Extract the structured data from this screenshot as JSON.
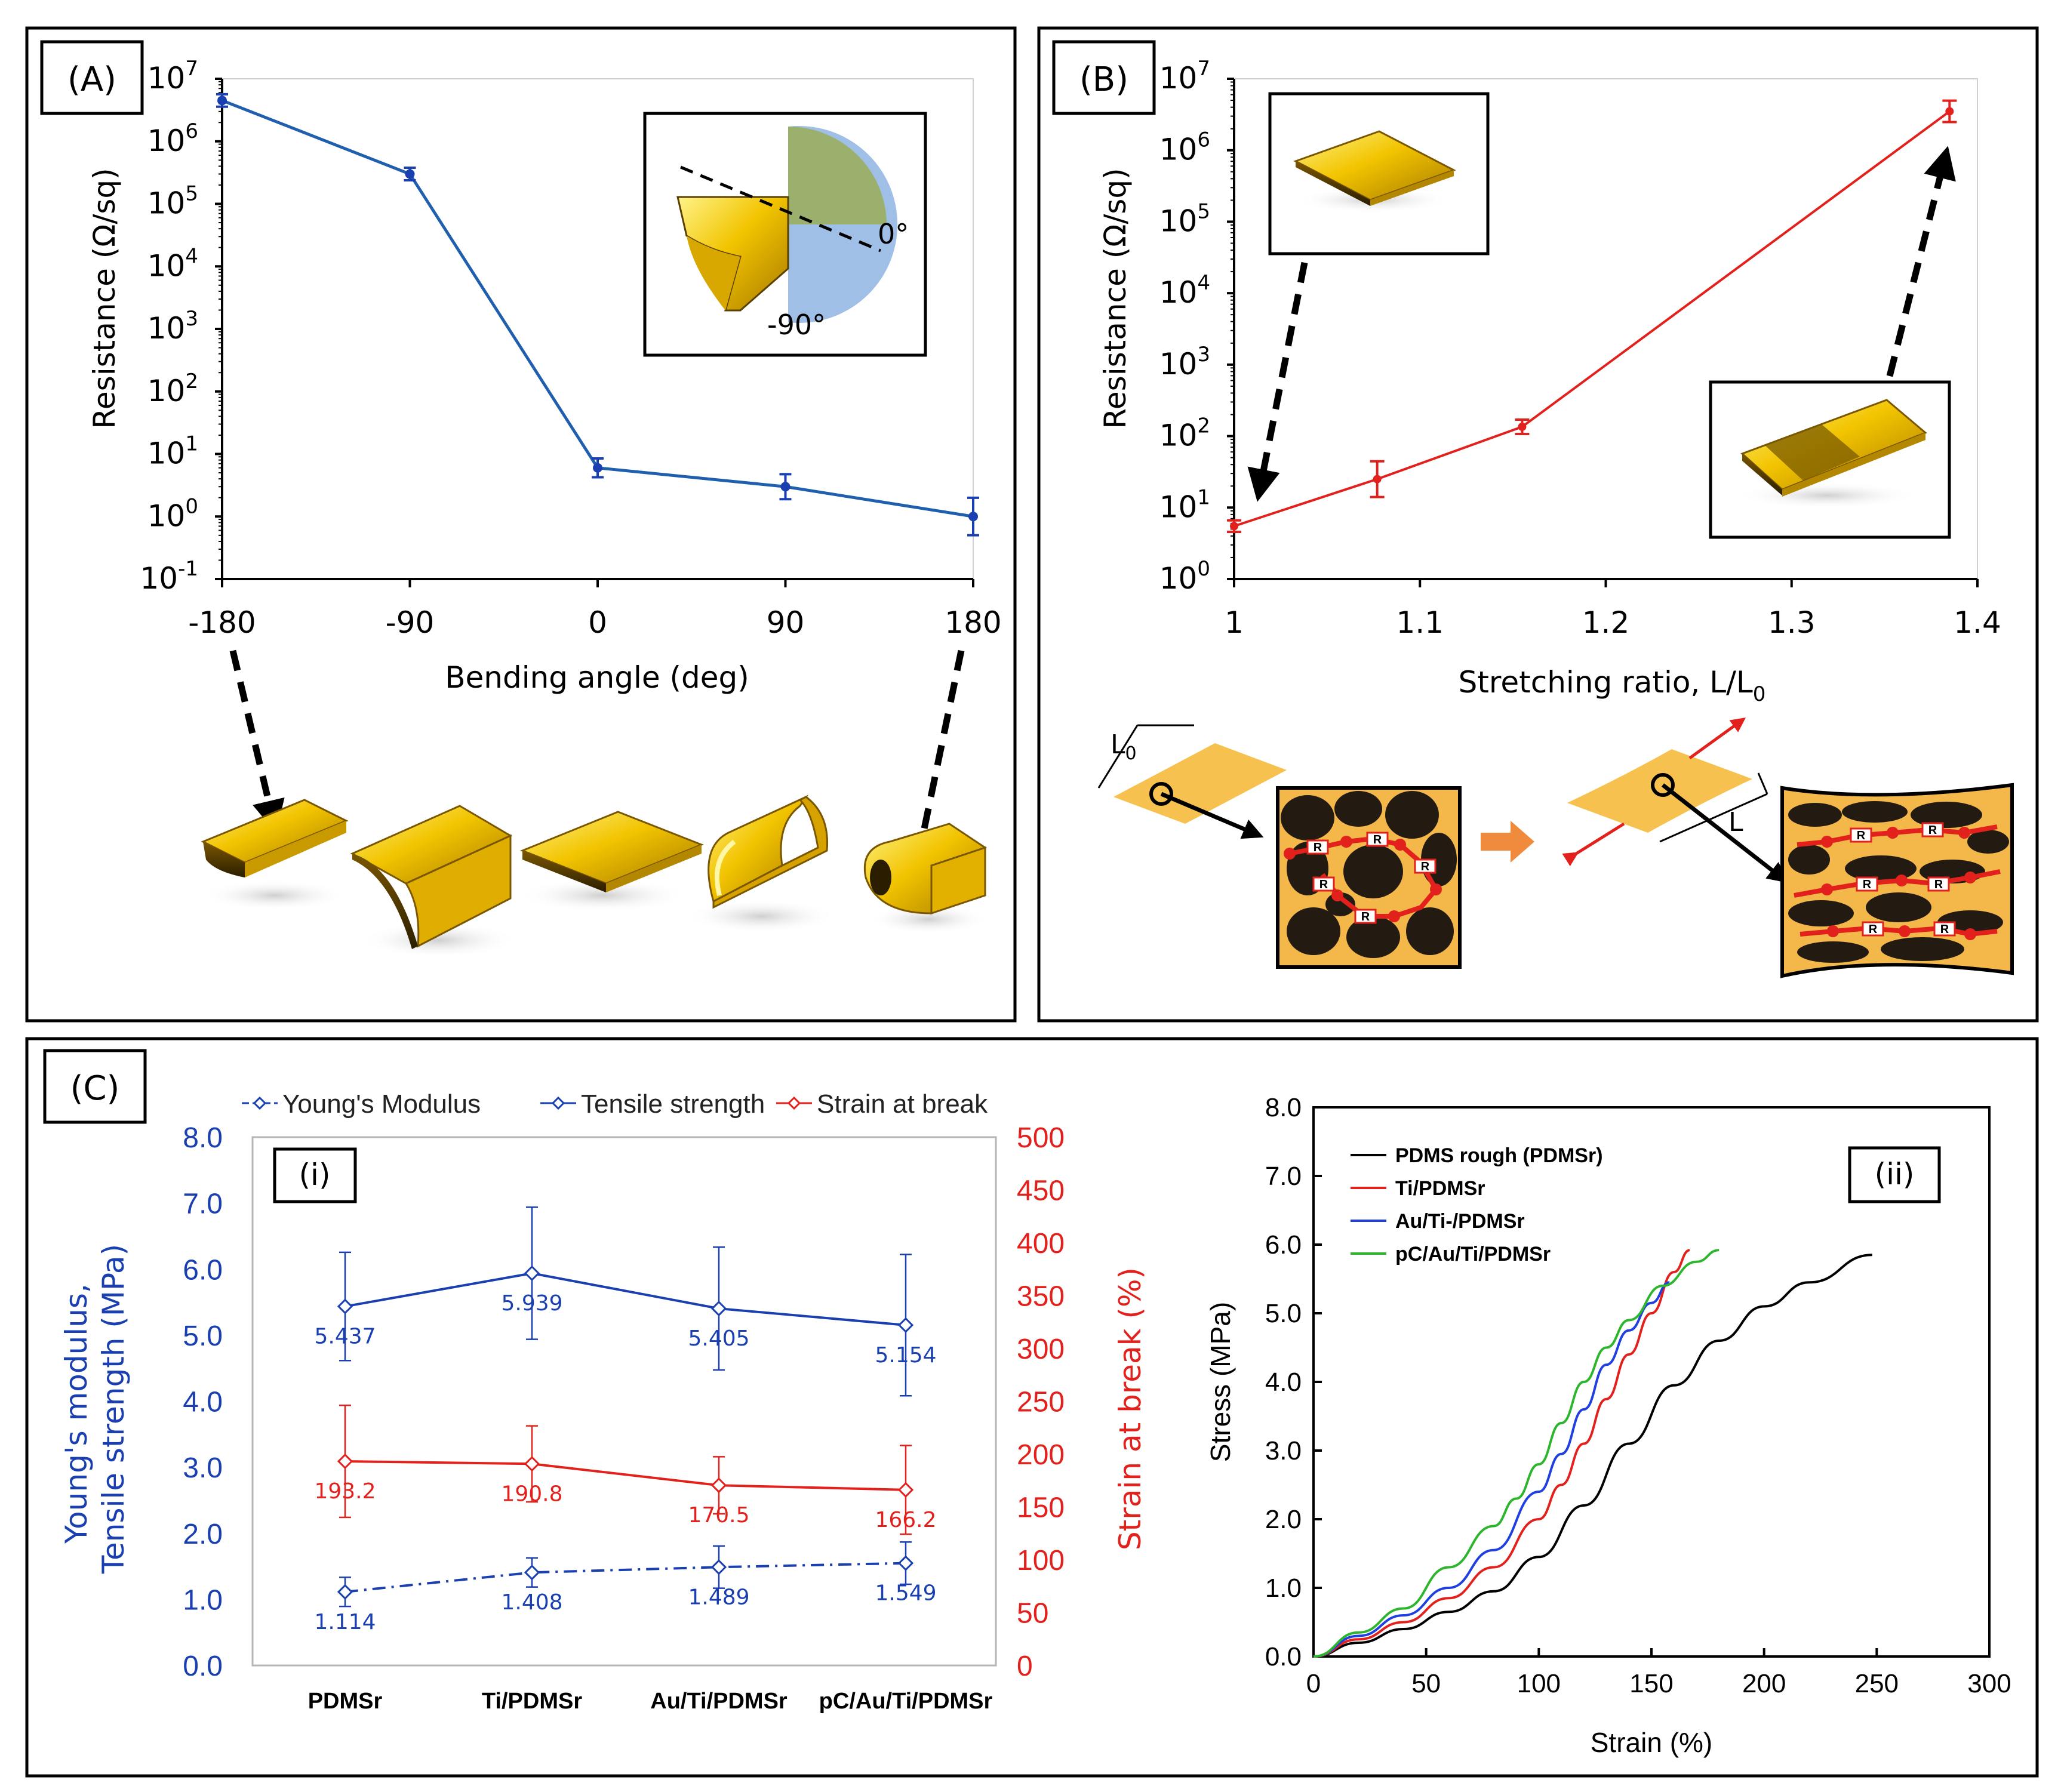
{
  "panels": {
    "A": {
      "label": "(A)",
      "inset_angle_a": "0°",
      "inset_angle_b": "-90°"
    },
    "B": {
      "label": "(B)",
      "diagram_L0": "L",
      "diagram_L0_sub": "0",
      "diagram_L": "L",
      "resistor": "R"
    },
    "C": {
      "label": "(C)",
      "sub_i": "(i)",
      "sub_ii": "(ii)"
    }
  },
  "colors": {
    "blue": "#1f5fae",
    "red": "#e3211c",
    "darkblue": "#1a3fb0",
    "gold": "#f2c100",
    "orange": "#f3a94a",
    "black": "#000000",
    "green": "#2db52d"
  },
  "chart_data": [
    {
      "id": "A",
      "type": "line",
      "xlabel": "Bending angle (deg)",
      "ylabel": "Resistance (Ω/sq)",
      "yscale": "log",
      "x": [
        -180,
        -90,
        0,
        90,
        180
      ],
      "xticks": [
        "-180",
        "-90",
        "0",
        "90",
        "180"
      ],
      "yticks_exp": [
        "-1",
        "0",
        "1",
        "2",
        "3",
        "4",
        "5",
        "6",
        "7"
      ],
      "ytick_base": "10",
      "ylim_exp": [
        -1,
        7
      ],
      "series": [
        {
          "name": "Resistance",
          "values": [
            4500000.0,
            300000.0,
            6,
            3,
            1
          ],
          "err_log": [
            0.1,
            0.1,
            0.15,
            0.2,
            0.3
          ]
        }
      ]
    },
    {
      "id": "B",
      "type": "line",
      "xlabel": "Stretching ratio, L/L",
      "xlabel_sub": "0",
      "ylabel": "Resistance (Ω/sq)",
      "yscale": "log",
      "xlim": [
        1,
        1.4
      ],
      "xticks": [
        "1",
        "1.1",
        "1.2",
        "1.3",
        "1.4"
      ],
      "yticks_exp": [
        "0",
        "1",
        "2",
        "3",
        "4",
        "5",
        "6",
        "7"
      ],
      "ytick_base": "10",
      "ylim_exp": [
        0,
        7
      ],
      "series": [
        {
          "name": "Resistance",
          "x": [
            1.0,
            1.077,
            1.155,
            1.385
          ],
          "values": [
            5.5,
            25,
            135,
            3500000.0
          ],
          "err_log": [
            0.08,
            0.25,
            0.1,
            0.15
          ]
        }
      ]
    },
    {
      "id": "C-i",
      "type": "line",
      "categories": [
        "PDMSr",
        "Ti/PDMSr",
        "Au/Ti/PDMSr",
        "pC/Au/Ti/PDMSr"
      ],
      "ylabel_left_1": "Young's modulus,",
      "ylabel_left_2": "Tensile strength (MPa)",
      "ylabel_right": "Strain at break (%)",
      "ylim_left": [
        0,
        8
      ],
      "ylim_right": [
        0,
        500
      ],
      "yticks_left": [
        "0.0",
        "1.0",
        "2.0",
        "3.0",
        "4.0",
        "5.0",
        "6.0",
        "7.0",
        "8.0"
      ],
      "yticks_right": [
        "0",
        "50",
        "100",
        "150",
        "200",
        "250",
        "300",
        "350",
        "400",
        "450",
        "500"
      ],
      "legend": [
        "Young's Modulus",
        "Tensile strength",
        "Strain at break"
      ],
      "series": [
        {
          "name": "Young's Modulus",
          "axis": "left",
          "values": [
            1.114,
            1.408,
            1.489,
            1.549
          ],
          "labels": [
            "1.114",
            "1.408",
            "1.489",
            "1.549"
          ],
          "err": [
            0.22,
            0.22,
            0.32,
            0.32
          ]
        },
        {
          "name": "Tensile strength",
          "axis": "left",
          "values": [
            5.437,
            5.939,
            5.405,
            5.154
          ],
          "labels": [
            "5.437",
            "5.939",
            "5.405",
            "5.154"
          ],
          "err": [
            0.82,
            1.0,
            0.93,
            1.07
          ]
        },
        {
          "name": "Strain at break",
          "axis": "right",
          "values": [
            193.2,
            190.8,
            170.5,
            166.2
          ],
          "labels": [
            "193.2",
            "190.8",
            "170.5",
            "166.2"
          ],
          "err": [
            53,
            36,
            27,
            42
          ]
        }
      ]
    },
    {
      "id": "C-ii",
      "type": "line",
      "xlabel": "Strain (%)",
      "ylabel": "Stress (MPa)",
      "xlim": [
        0,
        300
      ],
      "ylim": [
        0,
        8
      ],
      "xticks": [
        "0",
        "50",
        "100",
        "150",
        "200",
        "250",
        "300"
      ],
      "yticks": [
        "0.0",
        "1.0",
        "2.0",
        "3.0",
        "4.0",
        "5.0",
        "6.0",
        "7.0",
        "8.0"
      ],
      "legend": [
        "PDMS rough (PDMSr)",
        "Ti/PDMSr",
        "Au/Ti-/PDMSr",
        "pC/Au/Ti/PDMSr"
      ],
      "series": [
        {
          "name": "PDMS rough (PDMSr)",
          "x": [
            0,
            20,
            40,
            60,
            80,
            100,
            120,
            140,
            160,
            180,
            200,
            220,
            248
          ],
          "values": [
            0,
            0.2,
            0.4,
            0.65,
            0.95,
            1.45,
            2.2,
            3.1,
            3.95,
            4.6,
            5.1,
            5.45,
            5.85
          ]
        },
        {
          "name": "Ti/PDMSr",
          "x": [
            0,
            20,
            40,
            60,
            80,
            100,
            110,
            120,
            130,
            140,
            150,
            160,
            167
          ],
          "values": [
            0,
            0.25,
            0.5,
            0.85,
            1.3,
            2.0,
            2.5,
            3.1,
            3.75,
            4.4,
            5.0,
            5.6,
            5.92
          ]
        },
        {
          "name": "Au/Ti-/PDMSr",
          "x": [
            0,
            20,
            40,
            60,
            80,
            100,
            110,
            120,
            130,
            140,
            150,
            158
          ],
          "values": [
            0,
            0.3,
            0.6,
            1.0,
            1.55,
            2.4,
            2.95,
            3.6,
            4.25,
            4.75,
            5.15,
            5.45
          ]
        },
        {
          "name": "pC/Au/Ti/PDMSr",
          "x": [
            0,
            20,
            40,
            60,
            80,
            90,
            100,
            110,
            120,
            130,
            140,
            155,
            170,
            180
          ],
          "values": [
            0,
            0.35,
            0.7,
            1.3,
            1.9,
            2.3,
            2.8,
            3.4,
            4.0,
            4.5,
            4.9,
            5.4,
            5.75,
            5.92
          ]
        }
      ]
    }
  ]
}
